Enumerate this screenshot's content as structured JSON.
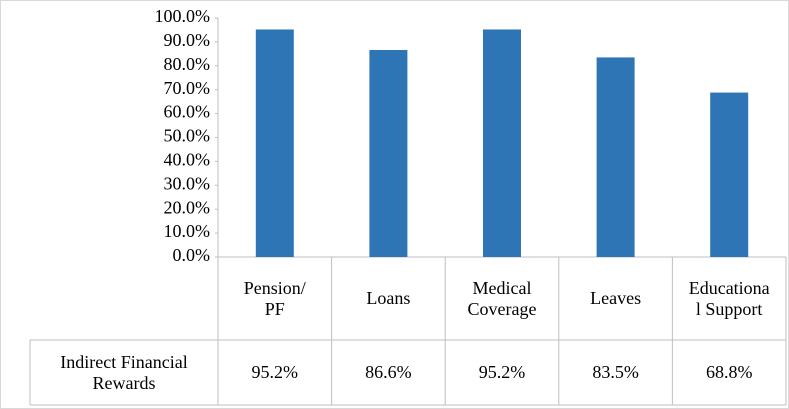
{
  "chart_data": {
    "type": "bar",
    "categories": [
      "Pension/ PF",
      "Loans",
      "Medical Coverage",
      "Leaves",
      "Educational Support"
    ],
    "series": [
      {
        "name": "Indirect Financial Rewards",
        "color": "#2e75b6",
        "values": [
          95.2,
          86.6,
          95.2,
          83.5,
          68.8
        ],
        "value_labels": [
          "95.2%",
          "86.6%",
          "95.2%",
          "83.5%",
          "68.8%"
        ]
      }
    ],
    "ylim": [
      0,
      100
    ],
    "yticks": [
      {
        "value": 0,
        "label": "0.0%"
      },
      {
        "value": 10,
        "label": "10.0%"
      },
      {
        "value": 20,
        "label": "20.0%"
      },
      {
        "value": 30,
        "label": "30.0%"
      },
      {
        "value": 40,
        "label": "40.0%"
      },
      {
        "value": 50,
        "label": "50.0%"
      },
      {
        "value": 60,
        "label": "60.0%"
      },
      {
        "value": 70,
        "label": "70.0%"
      },
      {
        "value": 80,
        "label": "80.0%"
      },
      {
        "value": 90,
        "label": "90.0%"
      },
      {
        "value": 100,
        "label": "100.0%"
      }
    ]
  }
}
